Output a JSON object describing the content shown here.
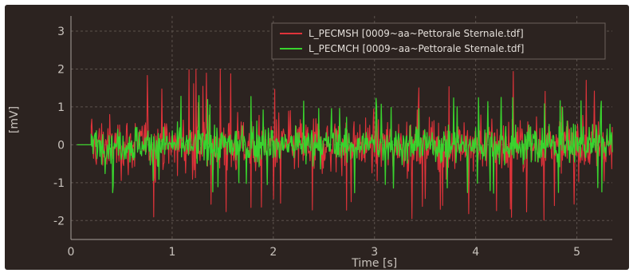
{
  "chart_data": {
    "type": "line",
    "title": "",
    "xlabel": "Time [s]",
    "ylabel": "[mV]",
    "xlim": [
      0,
      5.35
    ],
    "ylim": [
      -2.5,
      3.4
    ],
    "x_ticks": [
      "0",
      "1",
      "2",
      "3",
      "4",
      "5"
    ],
    "y_ticks": [
      "3",
      "2",
      "1",
      "0",
      "-1",
      "-2"
    ],
    "grid": true,
    "legend_position": "top-right",
    "background": "#2c2320",
    "signal_start_s": 0.2,
    "signal_end_s": 5.35,
    "series": [
      {
        "name": "L_PECMSH [0009~aa~Pettorale Sternale.tdf]",
        "color": "#e0333a",
        "typical_amplitude_mv": 0.7,
        "peak_amplitude_mv": 2.0
      },
      {
        "name": "L_PECMCH [0009~aa~Pettorale Sternale.tdf]",
        "color": "#39d32e",
        "typical_amplitude_mv": 0.45,
        "peak_amplitude_mv": 1.3
      }
    ]
  }
}
